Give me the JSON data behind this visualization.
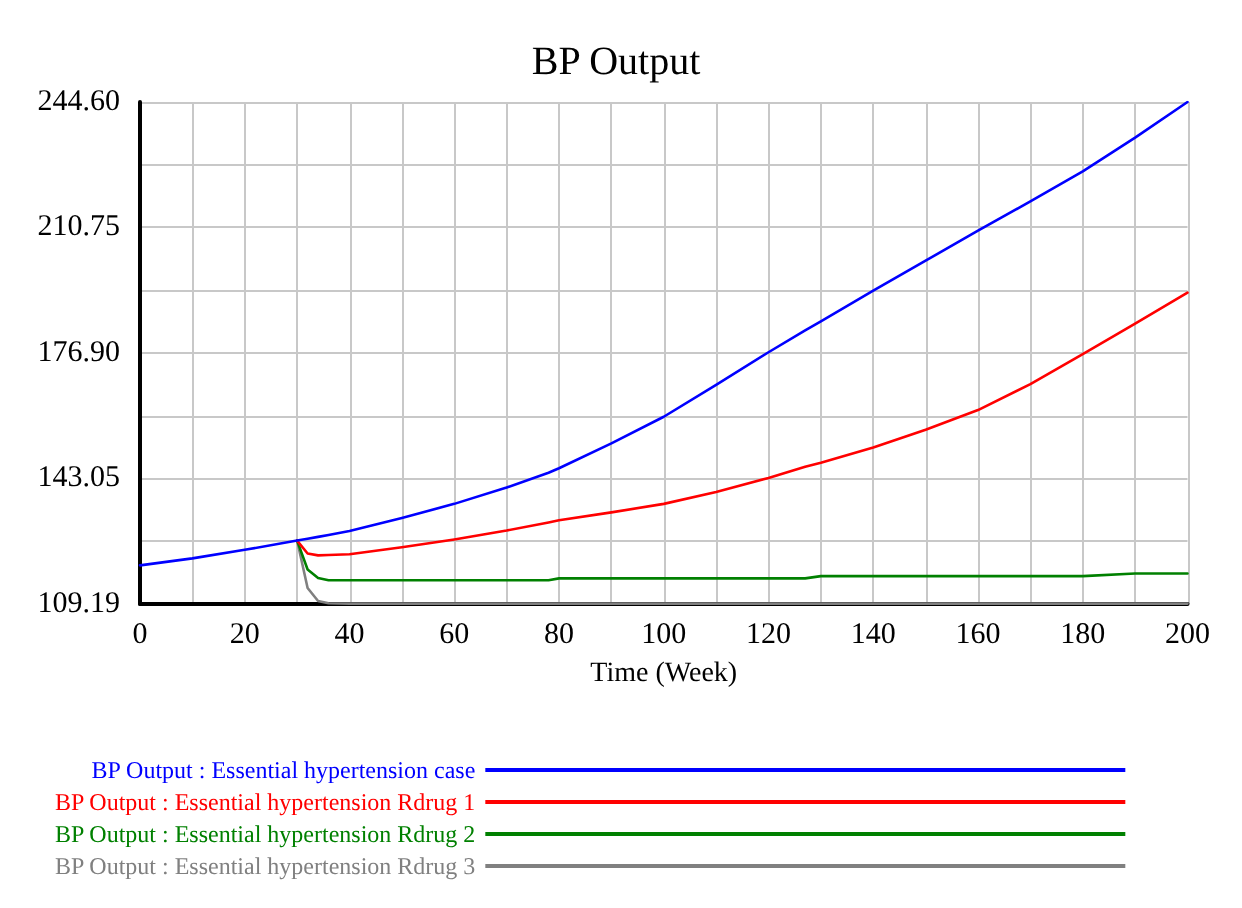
{
  "chart_data": {
    "type": "line",
    "title": "BP Output",
    "xlabel": "Time (Week)",
    "x": [
      0,
      10,
      20,
      30,
      32,
      34,
      36,
      40,
      50,
      60,
      70,
      78,
      80,
      90,
      100,
      110,
      120,
      127,
      130,
      140,
      150,
      160,
      170,
      180,
      190,
      200
    ],
    "series": [
      {
        "name": "BP Output : Essential hypertension case",
        "color": "#0000ff",
        "values": [
          119.6,
          121.5,
          123.8,
          126.3,
          126.8,
          127.3,
          127.8,
          128.9,
          132.4,
          136.2,
          140.6,
          144.6,
          145.8,
          152.5,
          159.7,
          168.3,
          177.1,
          183.0,
          185.4,
          193.7,
          201.8,
          209.9,
          217.8,
          225.9,
          235.0,
          244.6
        ]
      },
      {
        "name": "BP Output : Essential hypertension Rdrug 1",
        "color": "#ff0000",
        "values": [
          null,
          null,
          null,
          126.3,
          122.8,
          122.3,
          122.4,
          122.6,
          124.5,
          126.6,
          129.0,
          131.2,
          131.8,
          133.9,
          136.2,
          139.4,
          143.2,
          146.2,
          147.3,
          151.4,
          156.2,
          161.5,
          168.5,
          176.6,
          184.8,
          193.2
        ]
      },
      {
        "name": "BP Output : Essential hypertension Rdrug 2",
        "color": "#008000",
        "values": [
          null,
          null,
          null,
          126.3,
          118.5,
          116.2,
          115.6,
          115.6,
          115.6,
          115.6,
          115.6,
          115.6,
          116.1,
          116.1,
          116.1,
          116.1,
          116.1,
          116.1,
          116.7,
          116.7,
          116.7,
          116.7,
          116.7,
          116.7,
          117.4,
          117.4
        ]
      },
      {
        "name": "BP Output : Essential hypertension Rdrug 3",
        "color": "#808080",
        "values": [
          null,
          null,
          null,
          126.3,
          113.5,
          110.0,
          109.4,
          109.3,
          109.3,
          109.3,
          109.3,
          109.3,
          109.3,
          109.3,
          109.3,
          109.3,
          109.3,
          109.3,
          109.3,
          109.3,
          109.3,
          109.3,
          109.3,
          109.3,
          109.3,
          109.3
        ]
      }
    ],
    "xlim": [
      0,
      200
    ],
    "xticks": [
      0,
      {
        "value": 10,
        "label": null
      },
      20,
      {
        "value": 30,
        "label": null
      },
      40,
      {
        "value": 50,
        "label": null
      },
      60,
      {
        "value": 70,
        "label": null
      },
      80,
      {
        "value": 90,
        "label": null
      },
      100,
      {
        "value": 110,
        "label": null
      },
      120,
      {
        "value": 130,
        "label": null
      },
      140,
      {
        "value": 150,
        "label": null
      },
      160,
      {
        "value": 170,
        "label": null
      },
      180,
      {
        "value": 190,
        "label": null
      },
      200
    ],
    "ylim": [
      109.19,
      244.6
    ],
    "yticks": [
      {
        "value": 109.19,
        "label": "109.19"
      },
      {
        "value": 126.12,
        "label": null
      },
      {
        "value": 143.05,
        "label": "143.05"
      },
      {
        "value": 159.98,
        "label": null
      },
      {
        "value": 176.9,
        "label": "176.90"
      },
      {
        "value": 193.83,
        "label": null
      },
      {
        "value": 210.75,
        "label": "210.75"
      },
      {
        "value": 227.68,
        "label": null
      },
      {
        "value": 244.6,
        "label": "244.60"
      }
    ],
    "grid": true,
    "legend": "bottom",
    "marker": "none",
    "line_style": "solid"
  }
}
